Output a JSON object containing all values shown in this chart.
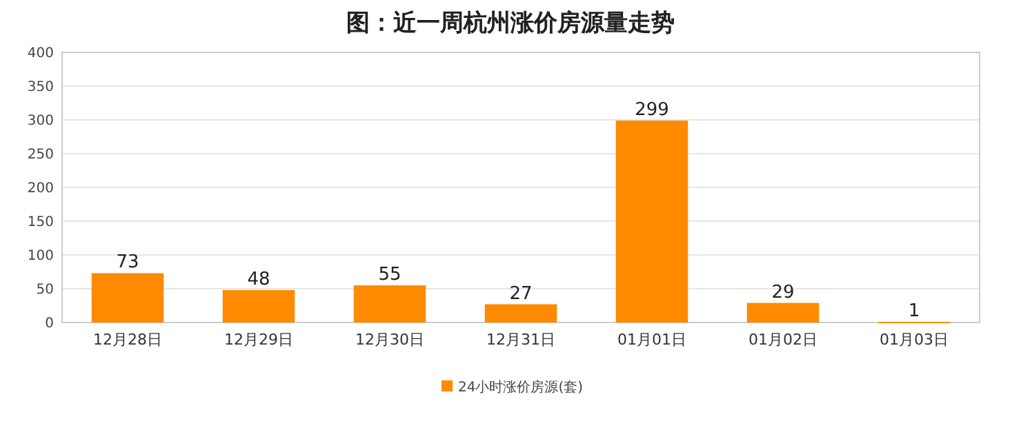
{
  "chart_data": {
    "type": "bar",
    "title": "图：近一周杭州涨价房源量走势",
    "categories": [
      "12月28日",
      "12月29日",
      "12月30日",
      "12月31日",
      "01月01日",
      "01月02日",
      "01月03日"
    ],
    "series": [
      {
        "name": "24小时涨价房源(套)",
        "color": "#ff8a00",
        "values": [
          73,
          48,
          55,
          27,
          299,
          29,
          1
        ]
      }
    ],
    "ylim": [
      0,
      400
    ],
    "yticks": [
      0,
      50,
      100,
      150,
      200,
      250,
      300,
      350,
      400
    ],
    "grid": "y",
    "legend": "bottom",
    "data_labels": true
  }
}
